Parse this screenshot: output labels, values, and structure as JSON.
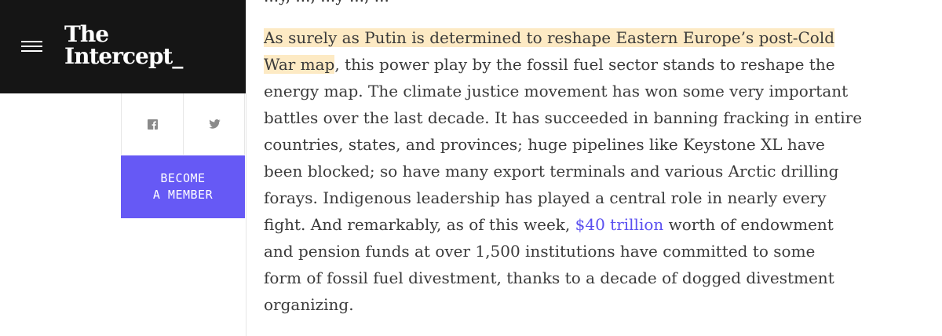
{
  "masthead": {
    "logo_line1": "The",
    "logo_line2": "Intercept_"
  },
  "sidebar": {
    "member_line1": "BECOME",
    "member_line2": "A MEMBER"
  },
  "article": {
    "top_partial": "...y, ..., ...y ..., ...",
    "line1_highlight": "As surely as Putin is determined to reshape Eastern Europe’s post-Cold",
    "line2_highlight": "War map",
    "line2_rest": ", this power play by the fossil fuel sector stands to reshape the",
    "line3": "energy map. The climate justice movement has won some very important",
    "line4": "battles over the last decade. It has succeeded in banning fracking in entire",
    "line5": "countries, states, and provinces; huge pipelines like Keystone XL have",
    "line6": "been blocked; so have many export terminals and various Arctic drilling",
    "line7": "forays. Indigenous leadership has played a central role in nearly every",
    "line8_before": "fight. And remarkably, as of this week, ",
    "line8_link": "$40 trillion",
    "line8_after": " worth of endowment",
    "line9": "and pension funds at over 1,500 institutions have committed to some",
    "line10": "form of fossil fuel divestment, thanks to a decade of dogged divestment",
    "line11": "organizing."
  },
  "icons": {
    "menu": "hamburger-menu-icon",
    "facebook": "facebook-icon",
    "twitter": "twitter-icon"
  },
  "colors": {
    "masthead_bg": "#151515",
    "member_button_bg": "#6659f5",
    "highlight_bg": "#fdeac4",
    "link": "#5a4ff0",
    "body_text": "#3a3a3a"
  }
}
